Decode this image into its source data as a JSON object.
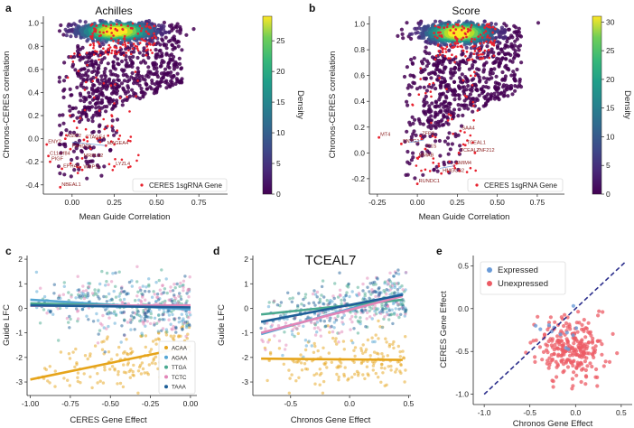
{
  "panels": {
    "a": {
      "letter": "a",
      "title": "Achilles",
      "xlabel": "Mean Guide Correlation",
      "ylabel": "Chronos-CERES correlation",
      "colorbar_label": "Density",
      "legend": "CERES 1sgRNA Gene"
    },
    "b": {
      "letter": "b",
      "title": "Score",
      "xlabel": "Mean Guide Correlation",
      "ylabel": "Chronos-CERES correlation",
      "colorbar_label": "Density",
      "legend": "CERES 1sgRNA Gene"
    },
    "c": {
      "letter": "c",
      "xlabel": "CERES Gene Effect",
      "ylabel": "Guide LFC"
    },
    "d": {
      "letter": "d",
      "title": "TCEAL7",
      "xlabel": "Chronos Gene Effect",
      "ylabel": "Guide LFC"
    },
    "e": {
      "letter": "e",
      "xlabel": "Chronos Gene Effect",
      "ylabel": "CERES Gene Effect"
    }
  },
  "chart_data": [
    {
      "id": "a",
      "type": "scatter",
      "title": "Achilles",
      "xlabel": "Mean Guide Correlation",
      "ylabel": "Chronos-CERES correlation",
      "xlim": [
        -0.17,
        0.92
      ],
      "ylim": [
        -0.48,
        1.06
      ],
      "xticks": [
        0.0,
        0.25,
        0.5,
        0.75
      ],
      "xticklabels": [
        "0.00",
        "0.25",
        "0.50",
        "0.75"
      ],
      "yticks": [
        -0.4,
        -0.2,
        0.0,
        0.2,
        0.4,
        0.6,
        0.8,
        1.0
      ],
      "yticklabels": [
        "-0.4",
        "-0.2",
        "0.0",
        "0.2",
        "0.4",
        "0.6",
        "0.8",
        "1.0"
      ],
      "colorbar": {
        "label": "Density",
        "min": 0,
        "max": 29,
        "ticks": [
          0,
          5,
          10,
          15,
          20,
          25
        ],
        "ticklabels": [
          "0",
          "5",
          "10",
          "15",
          "20",
          "25"
        ]
      },
      "legend": "CERES 1sgRNA Gene",
      "labeled_genes": [
        {
          "name": "ASIC2",
          "x": -0.04,
          "y": 0.0
        },
        {
          "name": "CTAGE4",
          "x": 0.07,
          "y": -0.01
        },
        {
          "name": "ENY2",
          "x": -0.15,
          "y": -0.05
        },
        {
          "name": "MAGEA4",
          "x": 0.2,
          "y": -0.06
        },
        {
          "name": "FAHD2B",
          "x": -0.01,
          "y": -0.09
        },
        {
          "name": "C11orf84",
          "x": -0.14,
          "y": -0.15
        },
        {
          "name": "MRPL42",
          "x": 0.06,
          "y": -0.17
        },
        {
          "name": "PIGF",
          "x": -0.13,
          "y": -0.2
        },
        {
          "name": "LYZL4",
          "x": 0.25,
          "y": -0.24
        },
        {
          "name": "EPHA5",
          "x": -0.06,
          "y": -0.26
        },
        {
          "name": "WBP1L",
          "x": 0.06,
          "y": -0.27
        },
        {
          "name": "NBEAL1",
          "x": -0.07,
          "y": -0.42
        }
      ]
    },
    {
      "id": "b",
      "type": "scatter",
      "title": "Score",
      "xlabel": "Mean Guide Correlation",
      "ylabel": "Chronos-CERES correlation",
      "xlim": [
        -0.3,
        0.92
      ],
      "ylim": [
        -0.32,
        1.06
      ],
      "xticks": [
        -0.25,
        0.0,
        0.25,
        0.5,
        0.75
      ],
      "xticklabels": [
        "-0.25",
        "0.00",
        "0.25",
        "0.50",
        "0.75"
      ],
      "yticks": [
        -0.2,
        0.0,
        0.2,
        0.4,
        0.6,
        0.8,
        1.0
      ],
      "yticklabels": [
        "-0.2",
        "0.0",
        "0.2",
        "0.4",
        "0.6",
        "0.8",
        "1.0"
      ],
      "colorbar": {
        "label": "Density",
        "min": 0,
        "max": 31,
        "ticks": [
          0,
          5,
          10,
          15,
          20,
          25,
          30
        ],
        "ticklabels": [
          "0",
          "5",
          "10",
          "15",
          "20",
          "25",
          "30"
        ]
      },
      "legend": "CERES 1sgRNA Gene",
      "labeled_genes": [
        {
          "name": "MT4",
          "x": -0.24,
          "y": 0.12
        },
        {
          "name": "SAA4",
          "x": 0.27,
          "y": 0.17
        },
        {
          "name": "ZFP3",
          "x": 0.02,
          "y": 0.13
        },
        {
          "name": "SNTG1",
          "x": -0.1,
          "y": 0.07
        },
        {
          "name": "TCEAL1",
          "x": 0.3,
          "y": 0.06
        },
        {
          "name": "C1S",
          "x": 0.05,
          "y": 0.03
        },
        {
          "name": "ZNF212",
          "x": 0.36,
          "y": 0.0
        },
        {
          "name": "TCEAL7",
          "x": 0.26,
          "y": 0.0
        },
        {
          "name": "MMAB",
          "x": 0.0,
          "y": -0.04
        },
        {
          "name": "SMIM4",
          "x": 0.23,
          "y": -0.1
        },
        {
          "name": "HMGCS2",
          "x": 0.15,
          "y": -0.16
        },
        {
          "name": "RUNDC1",
          "x": 0.0,
          "y": -0.24
        }
      ]
    },
    {
      "id": "c",
      "type": "scatter",
      "xlabel": "CERES Gene Effect",
      "ylabel": "Guide LFC",
      "xlim": [
        -1.02,
        0.04
      ],
      "ylim": [
        -3.55,
        2.15
      ],
      "xticks": [
        -1.0,
        -0.75,
        -0.5,
        -0.25,
        0.0
      ],
      "xticklabels": [
        "-1.00",
        "-0.75",
        "-0.50",
        "-0.25",
        "0.00"
      ],
      "yticks": [
        -3,
        -2,
        -1,
        0,
        1,
        2
      ],
      "yticklabels": [
        "-3",
        "-2",
        "-1",
        "0",
        "1",
        "2"
      ],
      "series": [
        {
          "name": "ACAA",
          "color": "#e6a41a",
          "fit": [
            [
              -1.0,
              -2.9
            ],
            [
              0.0,
              -1.55
            ]
          ]
        },
        {
          "name": "AGAA",
          "color": "#55a6d3",
          "fit": [
            [
              -1.0,
              0.35
            ],
            [
              0.0,
              -0.05
            ]
          ]
        },
        {
          "name": "TTGA",
          "color": "#49a98f",
          "fit": [
            [
              -1.0,
              0.2
            ],
            [
              0.0,
              0.05
            ]
          ]
        },
        {
          "name": "TCTC",
          "color": "#e285b7",
          "fit": [
            [
              -1.0,
              0.1
            ],
            [
              0.0,
              0.12
            ]
          ]
        },
        {
          "name": "TAAA",
          "color": "#1f5f98",
          "fit": [
            [
              -1.0,
              0.12
            ],
            [
              0.0,
              0.04
            ]
          ]
        }
      ]
    },
    {
      "id": "d",
      "type": "scatter",
      "title": "TCEAL7",
      "xlabel": "Chronos Gene Effect",
      "ylabel": "Guide LFC",
      "xlim": [
        -0.82,
        0.52
      ],
      "ylim": [
        -3.55,
        2.15
      ],
      "xticks": [
        -0.5,
        0.0,
        0.5
      ],
      "xticklabels": [
        "-0.5",
        "0.0",
        "0.5"
      ],
      "yticks": [
        -3,
        -2,
        -1,
        0,
        1,
        2
      ],
      "yticklabels": [
        "-3",
        "-2",
        "-1",
        "0",
        "1",
        "2"
      ],
      "series": [
        {
          "name": "ACAA",
          "color": "#e6a41a",
          "fit": [
            [
              -0.75,
              -2.05
            ],
            [
              0.45,
              -2.1
            ]
          ]
        },
        {
          "name": "AGAA",
          "color": "#55a6d3",
          "fit": [
            [
              -0.75,
              -1.05
            ],
            [
              0.45,
              0.6
            ]
          ]
        },
        {
          "name": "TTGA",
          "color": "#49a98f",
          "fit": [
            [
              -0.75,
              -0.25
            ],
            [
              0.45,
              0.35
            ]
          ]
        },
        {
          "name": "TCTC",
          "color": "#e285b7",
          "fit": [
            [
              -0.75,
              -1.0
            ],
            [
              0.45,
              0.5
            ]
          ]
        },
        {
          "name": "TAAA",
          "color": "#1f5f98",
          "fit": [
            [
              -0.75,
              -0.55
            ],
            [
              0.45,
              0.55
            ]
          ]
        }
      ]
    },
    {
      "id": "e",
      "type": "scatter",
      "xlabel": "Chronos Gene Effect",
      "ylabel": "CERES Gene Effect",
      "xlim": [
        -1.12,
        0.62
      ],
      "ylim": [
        -1.12,
        0.62
      ],
      "xticks": [
        -1.0,
        -0.5,
        0.0,
        0.5
      ],
      "xticklabels": [
        "-1.0",
        "-0.5",
        "0.0",
        "0.5"
      ],
      "yticks": [
        -1.0,
        -0.5,
        0.0,
        0.5
      ],
      "yticklabels": [
        "-1.0",
        "-0.5",
        "0.0",
        "0.5"
      ],
      "series": [
        {
          "name": "Expressed",
          "color": "#6a9bd8"
        },
        {
          "name": "Unexpressed",
          "color": "#ec5b64"
        }
      ],
      "diagonal": [
        [
          -1.0,
          -1.0
        ],
        [
          0.55,
          0.55
        ]
      ]
    }
  ]
}
